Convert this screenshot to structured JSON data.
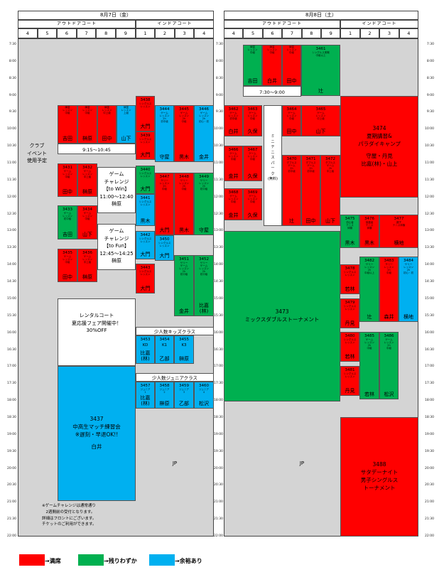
{
  "day1": {
    "date": "8月7日（金）",
    "outdoor": "アウトドアコート",
    "indoor": "インドアコート",
    "courts": [
      "4",
      "5",
      "6",
      "7",
      "8",
      "9",
      "1",
      "2",
      "3",
      "4"
    ]
  },
  "day2": {
    "date": "8月8日（土）",
    "outdoor": "アウトドアコート",
    "indoor": "インドアコート",
    "courts": [
      "4",
      "5",
      "6",
      "7",
      "8",
      "9",
      "1",
      "2",
      "3",
      "4"
    ]
  },
  "times": [
    "7:30",
    "8:00",
    "8:30",
    "9:00",
    "9:30",
    "10:00",
    "10:30",
    "11:00",
    "11:30",
    "12:00",
    "12:30",
    "13:00",
    "13:30",
    "14:00",
    "14:30",
    "15:00",
    "15:30",
    "16:00",
    "16:30",
    "17:00",
    "17:30",
    "18:00",
    "18:30",
    "19:00",
    "19:30",
    "20:00",
    "20:30",
    "21:00",
    "21:30",
    "22:00"
  ],
  "colors": {
    "red": "#ff0000",
    "green": "#00b050",
    "blue": "#00b0f0",
    "grey": "#d4d4d4"
  },
  "day1_blocks": [
    {
      "id": "d1_p1",
      "text": "練習\nレッスン\n中級",
      "name": "吉田"
    },
    {
      "id": "d1_p2",
      "text": "練習\nレッスン\n中級",
      "name": "榊原"
    },
    {
      "id": "d1_p3",
      "text": "練習\nレッスン\n中上級",
      "name": "田中"
    },
    {
      "id": "d1_p4",
      "text": "練習\nレッスン\n上級",
      "name": "山下"
    },
    {
      "id": "d1_g1",
      "code": "3431",
      "text": "ゲーム\nレッスン\n中級",
      "name": "田中"
    },
    {
      "id": "d1_g2",
      "code": "3432",
      "text": "ゲーム\nレッスン\n中上級",
      "name": "榊原"
    },
    {
      "id": "d1_g3",
      "code": "3433",
      "text": "ゲーム\nレッスン\n初中級",
      "name": "吉田"
    },
    {
      "id": "d1_g4",
      "code": "3434",
      "text": "ゲーム\nレッスン\n中級",
      "name": "山下"
    },
    {
      "id": "d1_g5",
      "code": "3435",
      "text": "ゲーム\nレッスン\n中級",
      "name": "田中"
    },
    {
      "id": "d1_g6",
      "code": "3436",
      "text": "ゲーム\nレッスン\n中上級",
      "name": "榊原"
    },
    {
      "id": "d1_i1",
      "code": "3438",
      "text": "シングルス\nレッスン",
      "name": "大門"
    },
    {
      "id": "d1_i2",
      "code": "3439",
      "text": "シングルス\nレッスン",
      "name": "大門"
    },
    {
      "id": "d1_i3",
      "code": "3440",
      "text": "シングルス\nレッスン",
      "name": "大門"
    },
    {
      "id": "d1_i4",
      "code": "3441",
      "text": "シングルス\nレッスン",
      "name": "黒木"
    },
    {
      "id": "d1_i5",
      "code": "3442",
      "text": "シングルス\nレッスン",
      "name": "大門"
    },
    {
      "id": "d1_i6",
      "code": "3443",
      "text": "シングルス\nレッスン",
      "name": "大門"
    },
    {
      "id": "d1_h1",
      "code": "3444",
      "text": "ゲーム\nレッスン\n2h\n初中級",
      "name": "守屋"
    },
    {
      "id": "d1_h2",
      "code": "3445",
      "text": "ゲーム\nレッスン\n2h\n中級",
      "name": "黒木"
    },
    {
      "id": "d1_h3",
      "code": "3446",
      "text": "ゲーム\nレッスン\n2h\n初心・初",
      "name": "金井"
    },
    {
      "id": "d1_h4",
      "code": "3447",
      "text": "サリー\nレッスン\n2h\n中級",
      "name": "大門"
    },
    {
      "id": "d1_h5",
      "code": "3448",
      "text": "サリー\nレッスン\n2h\n中級",
      "name": "黒木"
    },
    {
      "id": "d1_h6",
      "code": "3449",
      "text": "サリー\nレッスン\n2h\n初中級",
      "name": "守屋"
    },
    {
      "id": "d1_h7",
      "code": "3450",
      "text": "シングルス\nレッスン",
      "name": "大門"
    },
    {
      "id": "d1_h8",
      "code": "3451",
      "text": "サリー\nゲーム\nレッスン\n2h\n初中級",
      "name": "金井"
    },
    {
      "id": "d1_h9",
      "code": "3452",
      "text": "サリー\nゲーム\nレッスン\n2h\n初中級",
      "name": "比嘉(林)"
    },
    {
      "id": "d1_k1",
      "code": "3453",
      "text": "KD",
      "name": "比嘉(林)"
    },
    {
      "id": "d1_k2",
      "code": "3454",
      "text": "K1",
      "name": "乙部"
    },
    {
      "id": "d1_k3",
      "code": "3455",
      "text": "K3",
      "name": "榊原"
    },
    {
      "id": "d1_j1",
      "code": "3457",
      "text": "ジュニア\n1",
      "name": "比嘉(林)"
    },
    {
      "id": "d1_j2",
      "code": "3458",
      "text": "ジュニア\n2",
      "name": "榊原"
    },
    {
      "id": "d1_j3",
      "code": "3459",
      "text": "ジュニア\n3",
      "name": "乙部"
    },
    {
      "id": "d1_j4",
      "code": "3460",
      "text": "ジュニア\n4",
      "name": "松沢"
    },
    {
      "id": "d1_m",
      "code": "3437",
      "text": "中高生マッチ練習会\n※遅刻・早退OK!!",
      "name": "白井"
    }
  ],
  "day1_labels": {
    "club": "クラブ\nイベント\n使用予定",
    "practice_time": "9:15～10:45",
    "challenge1": "ゲーム\nチャレンジ\n【to Win】\n11:00～12:40\n榊原",
    "challenge2": "ゲーム\nチャレンジ\n【to Fun】\n12:45～14:25\n榊原",
    "rental": "レンタルコート\n夏応援フェア開催中！\n30%OFF",
    "kids_class": "少人数キッズクラス",
    "junior_class": "少人数ジュニアクラス",
    "jp": "JP",
    "note": "※ゲームチャレンジは通常通り\n　2週間前の受付となります。\n詳細はフロントにございます。\nチケットのご利用ができます。"
  },
  "day2_blocks": [
    {
      "id": "d2_p1",
      "text": "練習\nレッスン\n中級",
      "name": "吉田"
    },
    {
      "id": "d2_p2",
      "text": "練習\nレッスン\n中級",
      "name": "白井"
    },
    {
      "id": "d2_p3",
      "text": "練習\nレッスン\n中級",
      "name": "田中"
    },
    {
      "id": "d2_p4",
      "code": "3461",
      "text": "シングルス実戦\n中級以上",
      "name": "辻"
    },
    {
      "id": "d2_a1",
      "code": "3462",
      "text": "ゲーム\nレッスン\n初中級",
      "name": "白井"
    },
    {
      "id": "d2_a2",
      "code": "3463",
      "text": "ゲーム\nレッスン\n中級",
      "name": "久保"
    },
    {
      "id": "d2_a3",
      "code": "3464",
      "text": "ゲーム\nレッスン\n中級",
      "name": "田中"
    },
    {
      "id": "d2_a4",
      "code": "3465",
      "text": "ゲーム\nレッスン\n中上級",
      "name": "山下"
    },
    {
      "id": "d2_a5",
      "code": "3466",
      "text": "ゲーム\nレッスン\n中級",
      "name": "金井"
    },
    {
      "id": "d2_a6",
      "code": "3467",
      "text": "ゲーム\nレッスン\n中級",
      "name": "久保"
    },
    {
      "id": "d2_a7",
      "code": "3468",
      "text": "ゲーム\nレッスン\n中級",
      "name": "金井"
    },
    {
      "id": "d2_a8",
      "code": "3469",
      "text": "ゲーム\nレッスン\n中級",
      "name": "久保"
    },
    {
      "id": "d2_b1",
      "code": "3470",
      "text": "ダブルス\nゲーム\n2h\n初中級",
      "name": "辻"
    },
    {
      "id": "d2_b2",
      "code": "3471",
      "text": "ダブルス\nゲーム\n2h\n初中級",
      "name": "田中"
    },
    {
      "id": "d2_b3",
      "code": "3472",
      "text": "ダブルス\nゲーム\n2h\n中上級",
      "name": "山下"
    },
    {
      "id": "d2_camp",
      "code": "3474",
      "text": "夏期講習&\nパラダイキャンプ",
      "name": "守屋・丹見\n比嘉(林)・山上"
    },
    {
      "id": "d2_c1",
      "code": "3475",
      "text": "初心者\nテニス\n体験",
      "name": "黒木"
    },
    {
      "id": "d2_c2",
      "code": "3476",
      "text": "保護者\nテニス\n体験",
      "name": "黒木"
    },
    {
      "id": "d2_c3",
      "code": "3477",
      "text": "親子\nテニス体験",
      "name": "横地"
    },
    {
      "id": "d2_mix",
      "code": "3473",
      "text": "ミックスダブルストーナメント",
      "name": ""
    },
    {
      "id": "d2_s1",
      "code": "3478",
      "text": "シングルス\nレッスン",
      "name": "若林"
    },
    {
      "id": "d2_s2",
      "code": "3479",
      "text": "シングルス\nレッスン",
      "name": "丹見"
    },
    {
      "id": "d2_s3",
      "code": "3480",
      "text": "シングルス\nレッスン",
      "name": "若林"
    },
    {
      "id": "d2_s4",
      "code": "3481",
      "text": "シングルス\nレッスン",
      "name": "丹見"
    },
    {
      "id": "d2_r1",
      "code": "3482",
      "text": "サリー\nレッスン\n2h\n中級以上",
      "name": "辻"
    },
    {
      "id": "d2_r2",
      "code": "3483",
      "text": "サリー\nレッスン\n2h\n中級",
      "name": "森井"
    },
    {
      "id": "d2_r3",
      "code": "3484",
      "text": "サリー\nレッスン\n2h\n初心・初",
      "name": "横地"
    },
    {
      "id": "d2_r4",
      "code": "3485",
      "text": "ゲーム\nレッスン\n2h\n中級",
      "name": "若林"
    },
    {
      "id": "d2_r5",
      "code": "3486",
      "text": "ゲーム\nレッスン\n2h\n中級",
      "name": "松沢"
    },
    {
      "id": "d2_n",
      "code": "3488",
      "text": "サタデーナイト\n男子シングルス\nトーナメント",
      "name": ""
    }
  ],
  "day2_labels": {
    "practice_time": "7:30～9:00",
    "mini": "ミ\nニ\nテ\nニ\nス\nパ\nー\nク\n(無料)",
    "jp": "JP"
  },
  "legend": [
    {
      "color": "#ff0000",
      "label": "→満席"
    },
    {
      "color": "#00b050",
      "label": "→残りわずか"
    },
    {
      "color": "#00b0f0",
      "label": "→余裕あり"
    }
  ]
}
